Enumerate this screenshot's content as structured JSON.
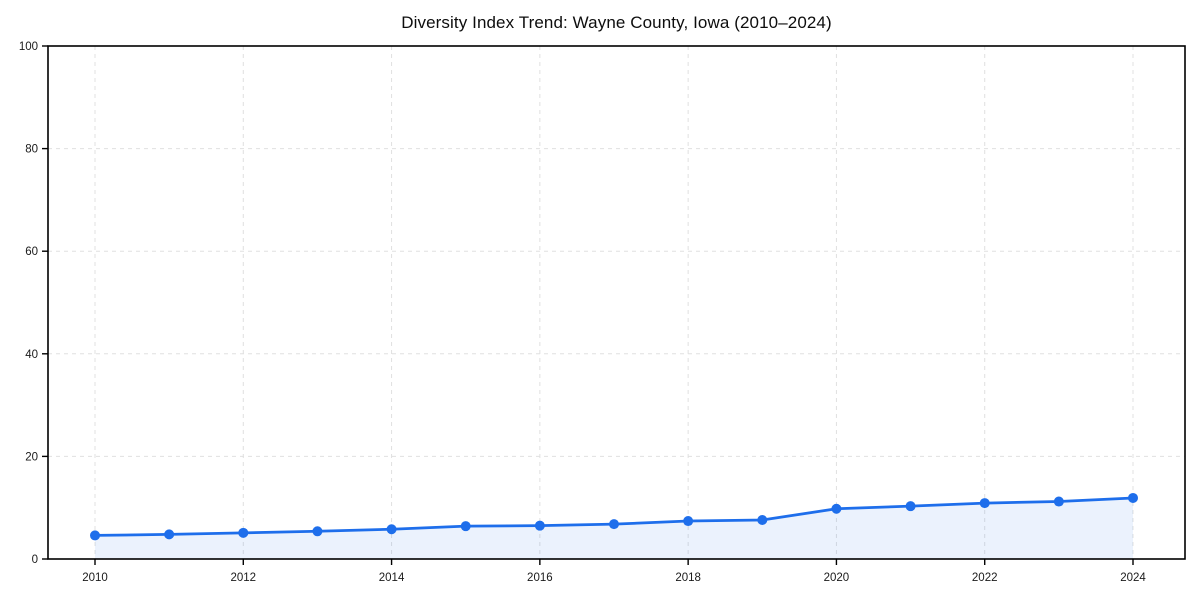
{
  "title": "Diversity Index Trend: Wayne County, Iowa (2010–2024)",
  "chart_data": {
    "type": "area",
    "title": "Diversity Index Trend: Wayne County, Iowa (2010–2024)",
    "x": [
      2010,
      2011,
      2012,
      2013,
      2014,
      2015,
      2016,
      2017,
      2018,
      2019,
      2020,
      2021,
      2022,
      2023,
      2024
    ],
    "series": [
      {
        "name": "Diversity Index",
        "values": [
          4.6,
          4.8,
          5.1,
          5.4,
          5.8,
          6.4,
          6.5,
          6.8,
          7.4,
          7.6,
          9.8,
          10.3,
          10.9,
          11.2,
          11.9
        ]
      }
    ],
    "xlabel": "",
    "ylabel": "",
    "xlim": [
      2009.37,
      2024.7
    ],
    "ylim": [
      0,
      100
    ],
    "yticks": [
      0,
      20,
      40,
      60,
      80,
      100
    ],
    "xticks": [
      2010,
      2012,
      2014,
      2016,
      2018,
      2020,
      2022,
      2024
    ],
    "grid": true,
    "grid_style": "dashed",
    "legend": "none",
    "colors": {
      "line": "#1e6eeb",
      "marker": "#1e6eeb",
      "fill": "#e9f0fc",
      "grid": "#e0e0e0",
      "axis": "#000000",
      "tick_text": "#1a1a1a",
      "background": "#ffffff"
    }
  }
}
